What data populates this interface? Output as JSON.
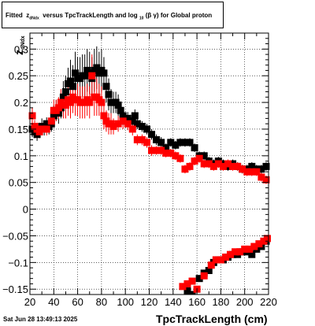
{
  "title": {
    "prefix": "Fitted",
    "z_symbol": "z",
    "z_subscript": "dNdx",
    "middle": "versus TpcTrackLength and log",
    "log_subscript": "10",
    "beta_gamma": "(β γ)",
    "suffix": "for Global proton"
  },
  "footer_date": "Sat Jun 28 13:49:13 2025",
  "chart_data": {
    "type": "scatter",
    "xlabel": "TpcTrackLength (cm)",
    "ylabel_main": "z",
    "ylabel_subscript": "dNdx",
    "xlim": [
      20,
      220
    ],
    "ylim": [
      -0.16,
      0.33
    ],
    "x_ticks": [
      20,
      40,
      60,
      80,
      100,
      120,
      140,
      160,
      180,
      200,
      220
    ],
    "y_ticks": [
      -0.15,
      -0.1,
      -0.05,
      0,
      0.05,
      0.1,
      0.15,
      0.2,
      0.25,
      0.3
    ],
    "y_tick_labels": [
      "−0.15",
      "−0.1",
      "−0.05",
      "0",
      "0.05",
      "0.1",
      "0.15",
      "0.2",
      "0.25",
      "0.3"
    ],
    "grid": true,
    "series": [
      {
        "color": "#000000",
        "marker": "square",
        "points": [
          [
            22,
            0.15,
            0.015
          ],
          [
            24,
            0.145,
            0.012
          ],
          [
            26,
            0.14,
            0.012
          ],
          [
            28,
            0.15,
            0.012
          ],
          [
            30,
            0.155,
            0.015
          ],
          [
            32,
            0.15,
            0.012
          ],
          [
            34,
            0.16,
            0.012
          ],
          [
            36,
            0.155,
            0.015
          ],
          [
            38,
            0.16,
            0.015
          ],
          [
            40,
            0.175,
            0.02
          ],
          [
            42,
            0.185,
            0.02
          ],
          [
            44,
            0.18,
            0.02
          ],
          [
            46,
            0.19,
            0.02
          ],
          [
            48,
            0.21,
            0.03
          ],
          [
            50,
            0.22,
            0.03
          ],
          [
            52,
            0.235,
            0.03
          ],
          [
            54,
            0.24,
            0.04
          ],
          [
            56,
            0.23,
            0.04
          ],
          [
            58,
            0.255,
            0.04
          ],
          [
            60,
            0.245,
            0.04
          ],
          [
            62,
            0.245,
            0.04
          ],
          [
            64,
            0.25,
            0.04
          ],
          [
            66,
            0.25,
            0.04
          ],
          [
            68,
            0.26,
            0.04
          ],
          [
            70,
            0.255,
            0.04
          ],
          [
            72,
            0.245,
            0.04
          ],
          [
            74,
            0.26,
            0.04
          ],
          [
            76,
            0.265,
            0.04
          ],
          [
            78,
            0.255,
            0.04
          ],
          [
            80,
            0.26,
            0.04
          ],
          [
            82,
            0.255,
            0.03
          ],
          [
            84,
            0.23,
            0.03
          ],
          [
            86,
            0.215,
            0.03
          ],
          [
            88,
            0.2,
            0.025
          ],
          [
            90,
            0.2,
            0.02
          ],
          [
            92,
            0.2,
            0.02
          ],
          [
            94,
            0.195,
            0.02
          ],
          [
            96,
            0.185,
            0.015
          ],
          [
            98,
            0.175,
            0.015
          ],
          [
            100,
            0.165,
            0.012
          ],
          [
            102,
            0.17,
            0.012
          ],
          [
            104,
            0.165,
            0.012
          ],
          [
            106,
            0.165,
            0.012
          ],
          [
            108,
            0.175,
            0.012
          ],
          [
            110,
            0.16,
            0.01
          ],
          [
            114,
            0.155,
            0.01
          ],
          [
            118,
            0.15,
            0.01
          ],
          [
            122,
            0.14,
            0.01
          ],
          [
            126,
            0.13,
            0.01
          ],
          [
            130,
            0.125,
            0.01
          ],
          [
            134,
            0.115,
            0.008
          ],
          [
            138,
            0.125,
            0.008
          ],
          [
            142,
            0.12,
            0.008
          ],
          [
            146,
            0.125,
            0.008
          ],
          [
            150,
            0.125,
            0.008
          ],
          [
            154,
            0.125,
            0.008
          ],
          [
            158,
            0.115,
            0.008
          ],
          [
            162,
            0.1,
            0.008
          ],
          [
            166,
            0.1,
            0.008
          ],
          [
            170,
            0.09,
            0.008
          ],
          [
            174,
            0.085,
            0.008
          ],
          [
            178,
            0.09,
            0.008
          ],
          [
            182,
            0.085,
            0.008
          ],
          [
            186,
            0.08,
            0.008
          ],
          [
            190,
            0.085,
            0.008
          ],
          [
            194,
            0.08,
            0.008
          ],
          [
            198,
            0.075,
            0.008
          ],
          [
            202,
            0.075,
            0.008
          ],
          [
            206,
            0.08,
            0.008
          ],
          [
            210,
            0.075,
            0.008
          ],
          [
            214,
            0.075,
            0.008
          ],
          [
            218,
            0.08,
            0.008
          ],
          [
            152,
            -0.153,
            0.005
          ],
          [
            156,
            -0.16,
            0.005
          ],
          [
            162,
            -0.13,
            0.005
          ],
          [
            166,
            -0.12,
            0.005
          ],
          [
            170,
            -0.115,
            0.005
          ],
          [
            174,
            -0.1,
            0.005
          ],
          [
            178,
            -0.095,
            0.005
          ],
          [
            182,
            -0.095,
            0.005
          ],
          [
            186,
            -0.09,
            0.005
          ],
          [
            190,
            -0.085,
            0.005
          ],
          [
            194,
            -0.085,
            0.005
          ],
          [
            198,
            -0.08,
            0.005
          ],
          [
            202,
            -0.08,
            0.005
          ],
          [
            206,
            -0.085,
            0.005
          ],
          [
            210,
            -0.075,
            0.005
          ],
          [
            214,
            -0.07,
            0.005
          ],
          [
            218,
            -0.06,
            0.005
          ]
        ]
      },
      {
        "color": "#ff0000",
        "marker": "square",
        "points": [
          [
            22,
            0.175,
            0.015
          ],
          [
            24,
            0.155,
            0.012
          ],
          [
            26,
            0.15,
            0.012
          ],
          [
            28,
            0.145,
            0.012
          ],
          [
            30,
            0.15,
            0.012
          ],
          [
            34,
            0.15,
            0.012
          ],
          [
            38,
            0.165,
            0.015
          ],
          [
            40,
            0.185,
            0.02
          ],
          [
            42,
            0.185,
            0.02
          ],
          [
            44,
            0.19,
            0.02
          ],
          [
            46,
            0.2,
            0.025
          ],
          [
            48,
            0.195,
            0.025
          ],
          [
            50,
            0.195,
            0.025
          ],
          [
            52,
            0.205,
            0.03
          ],
          [
            54,
            0.2,
            0.03
          ],
          [
            56,
            0.21,
            0.03
          ],
          [
            58,
            0.205,
            0.03
          ],
          [
            60,
            0.205,
            0.03
          ],
          [
            62,
            0.2,
            0.03
          ],
          [
            64,
            0.2,
            0.03
          ],
          [
            66,
            0.2,
            0.03
          ],
          [
            68,
            0.205,
            0.03
          ],
          [
            70,
            0.2,
            0.03
          ],
          [
            72,
            0.25,
            0.04
          ],
          [
            74,
            0.21,
            0.035
          ],
          [
            76,
            0.21,
            0.035
          ],
          [
            78,
            0.205,
            0.03
          ],
          [
            80,
            0.2,
            0.03
          ],
          [
            82,
            0.175,
            0.025
          ],
          [
            84,
            0.165,
            0.02
          ],
          [
            86,
            0.16,
            0.02
          ],
          [
            88,
            0.16,
            0.02
          ],
          [
            90,
            0.155,
            0.015
          ],
          [
            94,
            0.16,
            0.015
          ],
          [
            98,
            0.165,
            0.015
          ],
          [
            102,
            0.16,
            0.012
          ],
          [
            106,
            0.15,
            0.012
          ],
          [
            110,
            0.13,
            0.01
          ],
          [
            114,
            0.13,
            0.01
          ],
          [
            118,
            0.125,
            0.01
          ],
          [
            122,
            0.11,
            0.01
          ],
          [
            126,
            0.11,
            0.008
          ],
          [
            130,
            0.11,
            0.008
          ],
          [
            134,
            0.105,
            0.008
          ],
          [
            138,
            0.105,
            0.008
          ],
          [
            142,
            0.1,
            0.008
          ],
          [
            146,
            0.095,
            0.008
          ],
          [
            150,
            0.075,
            0.008
          ],
          [
            154,
            0.08,
            0.008
          ],
          [
            158,
            0.09,
            0.008
          ],
          [
            162,
            0.095,
            0.008
          ],
          [
            166,
            0.085,
            0.008
          ],
          [
            170,
            0.085,
            0.008
          ],
          [
            174,
            0.08,
            0.008
          ],
          [
            178,
            0.085,
            0.008
          ],
          [
            182,
            0.08,
            0.008
          ],
          [
            186,
            0.085,
            0.008
          ],
          [
            190,
            0.08,
            0.008
          ],
          [
            194,
            0.08,
            0.008
          ],
          [
            198,
            0.075,
            0.008
          ],
          [
            202,
            0.07,
            0.008
          ],
          [
            206,
            0.07,
            0.008
          ],
          [
            210,
            0.07,
            0.008
          ],
          [
            214,
            0.06,
            0.008
          ],
          [
            218,
            0.055,
            0.008
          ],
          [
            148,
            -0.145,
            0.005
          ],
          [
            152,
            -0.14,
            0.005
          ],
          [
            156,
            -0.135,
            0.005
          ],
          [
            160,
            -0.15,
            0.005
          ],
          [
            166,
            -0.125,
            0.005
          ],
          [
            172,
            -0.105,
            0.005
          ],
          [
            176,
            -0.095,
            0.005
          ],
          [
            180,
            -0.095,
            0.005
          ],
          [
            184,
            -0.09,
            0.005
          ],
          [
            188,
            -0.085,
            0.005
          ],
          [
            192,
            -0.08,
            0.005
          ],
          [
            196,
            -0.08,
            0.005
          ],
          [
            200,
            -0.075,
            0.005
          ],
          [
            204,
            -0.075,
            0.005
          ],
          [
            208,
            -0.07,
            0.005
          ],
          [
            212,
            -0.065,
            0.005
          ],
          [
            216,
            -0.06,
            0.005
          ],
          [
            219,
            -0.055,
            0.005
          ]
        ]
      }
    ]
  }
}
